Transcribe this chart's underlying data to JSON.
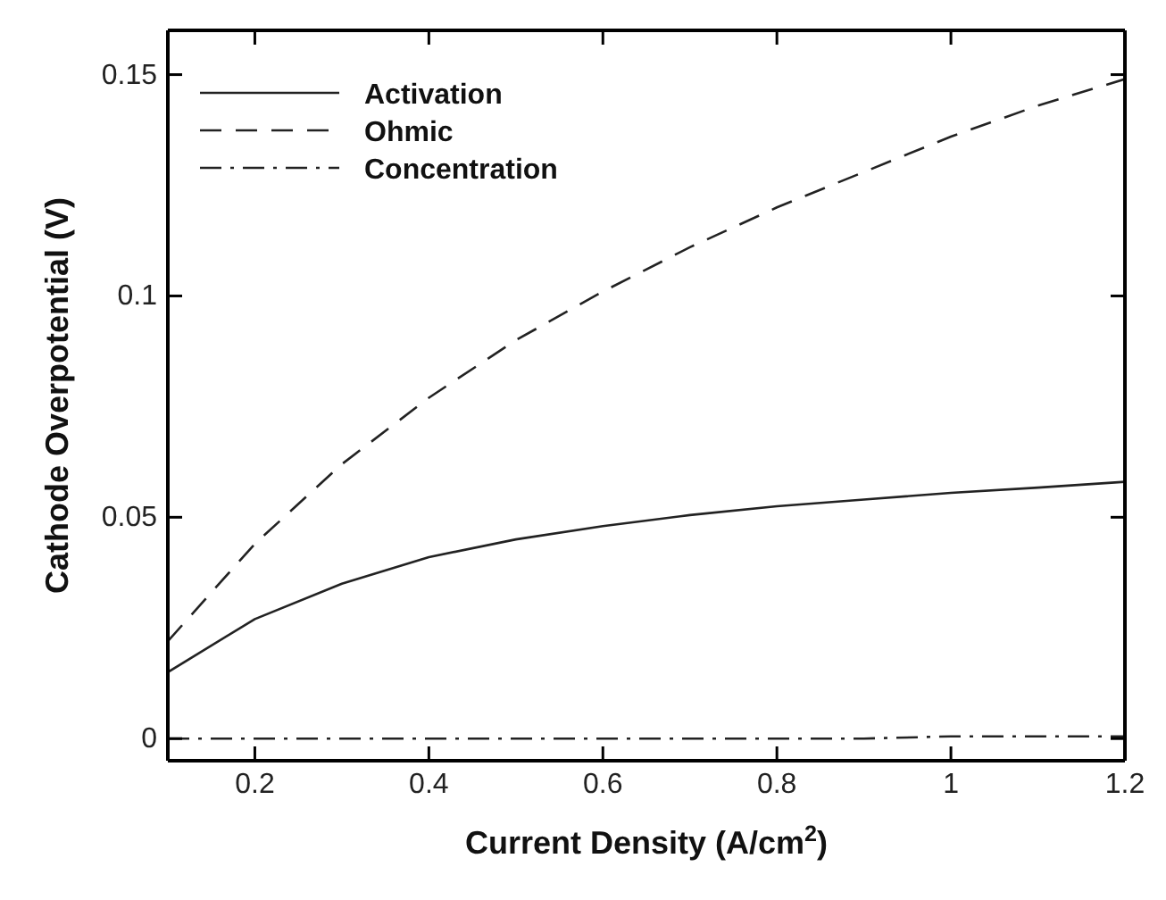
{
  "chart_data": {
    "type": "line",
    "xlabel": "Current Density (A/cm$^{2}$)",
    "ylabel": "Cathode Overpotential (V)",
    "x": [
      0.1,
      0.2,
      0.3,
      0.4,
      0.5,
      0.6,
      0.7,
      0.8,
      0.9,
      1.0,
      1.1,
      1.2
    ],
    "series": [
      {
        "name": "Activation",
        "color": "#222222",
        "line_style": "solid",
        "values": [
          0.015,
          0.027,
          0.035,
          0.041,
          0.045,
          0.048,
          0.0505,
          0.0525,
          0.054,
          0.0555,
          0.0567,
          0.058
        ]
      },
      {
        "name": "Ohmic",
        "color": "#222222",
        "line_style": "dashed",
        "values": [
          0.022,
          0.044,
          0.062,
          0.077,
          0.09,
          0.101,
          0.111,
          0.12,
          0.128,
          0.136,
          0.143,
          0.149
        ]
      },
      {
        "name": "Concentration",
        "color": "#222222",
        "line_style": "dashdot",
        "values": [
          0,
          0,
          0,
          0,
          0,
          0,
          0,
          0,
          0,
          0.0005,
          0.0005,
          0.0005
        ]
      }
    ],
    "xlim": [
      0.1,
      1.2
    ],
    "xticks": [
      0.2,
      0.4,
      0.6,
      0.8,
      1,
      1.2
    ],
    "ylim": [
      -0.005,
      0.16
    ],
    "yticks": [
      0,
      0.05,
      0.1,
      0.15
    ],
    "grid": false,
    "legend": "top left",
    "marker": "none"
  }
}
